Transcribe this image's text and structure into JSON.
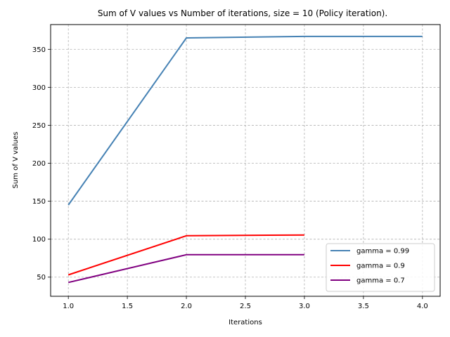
{
  "chart_data": {
    "type": "line",
    "title": "Sum of V values vs Number of iterations, size = 10 (Policy iteration).",
    "xlabel": "Iterations",
    "ylabel": "Sum of V values",
    "xlim": [
      0.85,
      4.15
    ],
    "ylim": [
      24.8,
      382.6
    ],
    "xticks": [
      1.0,
      1.5,
      2.0,
      2.5,
      3.0,
      3.5,
      4.0
    ],
    "xtick_labels": [
      "1.0",
      "1.5",
      "2.0",
      "2.5",
      "3.0",
      "3.5",
      "4.0"
    ],
    "yticks": [
      50,
      100,
      150,
      200,
      250,
      300,
      350
    ],
    "ytick_labels": [
      "50",
      "100",
      "150",
      "200",
      "250",
      "300",
      "350"
    ],
    "grid": true,
    "legend_position": "bottom-right",
    "series": [
      {
        "name": "gamma = 0.99",
        "color": "#4682b4",
        "x": [
          1,
          2,
          3,
          4
        ],
        "values": [
          145,
          365,
          367,
          367
        ]
      },
      {
        "name": "gamma = 0.9",
        "color": "#ff0000",
        "x": [
          1,
          2,
          3
        ],
        "values": [
          53,
          104.5,
          105.5
        ]
      },
      {
        "name": "gamma = 0.7",
        "color": "#800080",
        "x": [
          1,
          2,
          3
        ],
        "values": [
          43,
          79.5,
          79.5
        ]
      }
    ]
  }
}
